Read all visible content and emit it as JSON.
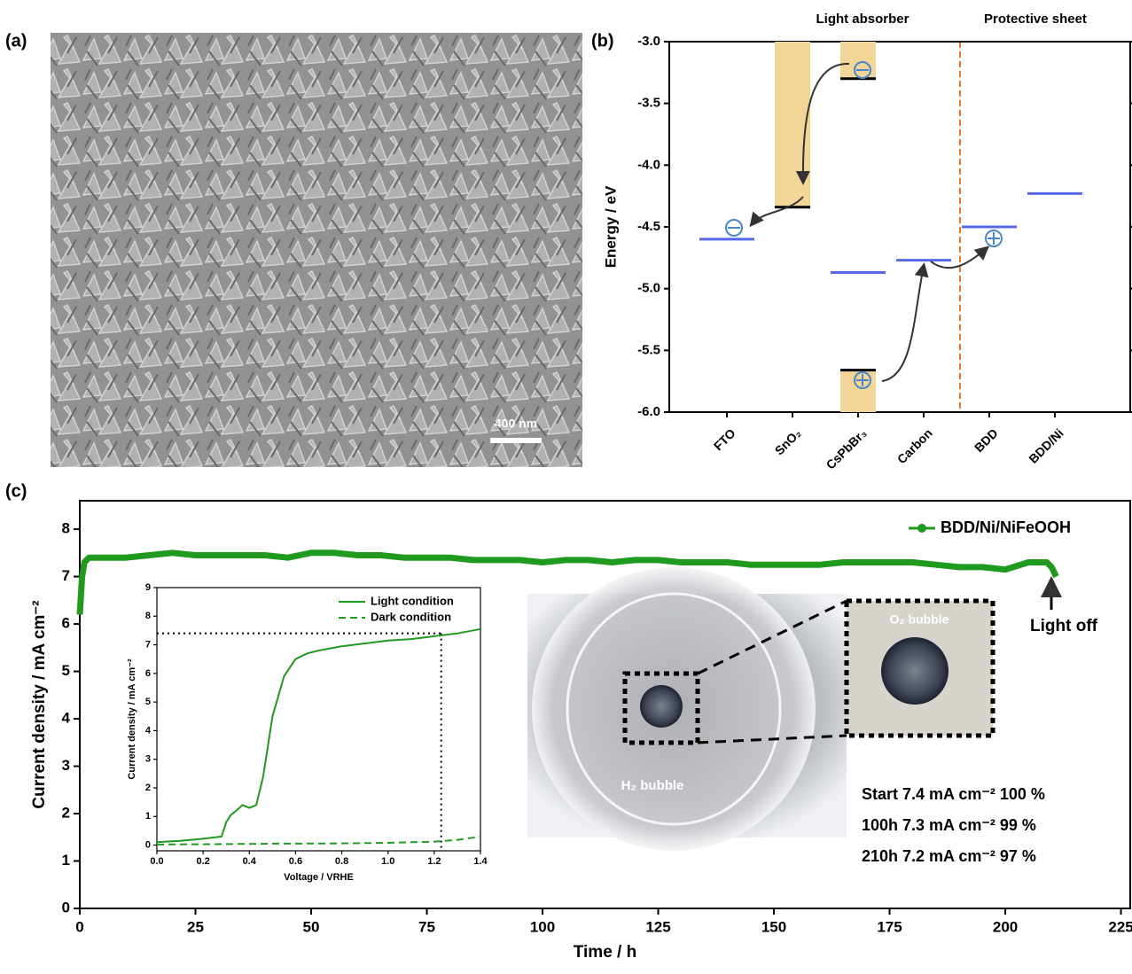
{
  "panel_labels": [
    "(a)",
    "(b)",
    "(c)"
  ],
  "sem_image": {
    "scale_bar": "400 nm"
  },
  "photo": {
    "labels": [
      "H₂ bubble",
      "O₂ bubble"
    ]
  },
  "chart_data": [
    {
      "type": "energy-level",
      "ylabel": "Energy / eV",
      "groups": [
        "Light absorber",
        "Protective sheet"
      ],
      "categories": [
        "FTO",
        "SnO₂",
        "CsPbBr₃",
        "Carbon",
        "BDD",
        "BDD/Ni"
      ],
      "levels": [
        -4.6,
        null,
        -4.87,
        -4.77,
        -4.5,
        -4.23
      ],
      "conduction_band": [
        null,
        -4.34,
        -3.3,
        null,
        null,
        null
      ],
      "valence_band": [
        null,
        null,
        -5.66,
        null,
        null,
        null
      ],
      "level_color": "#5468e6",
      "band_color": "#f2d597",
      "edge_color": "#000000",
      "ylim": [
        -6.0,
        -3.0
      ],
      "yticks": [
        {
          "value": -3.0,
          "label": "-3.0"
        },
        -3.5,
        {
          "value": -4.0,
          "label": "-4.0"
        },
        -4.5,
        {
          "value": -5.0,
          "label": "-5.0"
        },
        -5.5,
        {
          "value": -6.0,
          "label": "-6.0"
        }
      ]
    },
    {
      "type": "line",
      "xlabel": "Time / h",
      "ylabel": "Current density / mA cm⁻²",
      "x": [
        0,
        0.5,
        1,
        2,
        5,
        10,
        15,
        20,
        25,
        30,
        35,
        40,
        45,
        50,
        55,
        60,
        65,
        70,
        75,
        80,
        85,
        90,
        95,
        100,
        105,
        110,
        115,
        120,
        125,
        130,
        135,
        140,
        145,
        150,
        155,
        160,
        165,
        170,
        175,
        180,
        185,
        190,
        195,
        200,
        205,
        209,
        210,
        211
      ],
      "series": [
        {
          "name": "BDD/Ni/NiFeOOH",
          "color": "#1f9a1f",
          "values": [
            6.2,
            7.0,
            7.3,
            7.4,
            7.4,
            7.4,
            7.45,
            7.5,
            7.45,
            7.45,
            7.45,
            7.45,
            7.4,
            7.5,
            7.5,
            7.45,
            7.45,
            7.4,
            7.4,
            7.4,
            7.35,
            7.35,
            7.35,
            7.3,
            7.35,
            7.35,
            7.3,
            7.35,
            7.35,
            7.3,
            7.3,
            7.3,
            7.25,
            7.25,
            7.25,
            7.25,
            7.3,
            7.3,
            7.3,
            7.3,
            7.25,
            7.2,
            7.2,
            7.15,
            7.3,
            7.3,
            7.2,
            7.0
          ]
        }
      ],
      "xlim": [
        0,
        227
      ],
      "xticks": [
        0,
        25,
        50,
        75,
        100,
        125,
        150,
        175,
        200,
        225
      ],
      "ylim": [
        0,
        8.6
      ],
      "yticks": [
        0,
        1,
        2,
        3,
        4,
        5,
        6,
        7,
        8
      ],
      "annotation": "Light off",
      "stats": [
        "Start 7.4 mA cm⁻² 100 %",
        "100h 7.3 mA cm⁻² 99 %",
        "210h 7.2 mA cm⁻² 97 %"
      ]
    },
    {
      "type": "line",
      "xlabel": "Voltage / VRHE",
      "ylabel": "Current density / mA cm⁻²",
      "x": [
        0,
        0.1,
        0.2,
        0.28,
        0.3,
        0.32,
        0.35,
        0.37,
        0.4,
        0.43,
        0.46,
        0.5,
        0.55,
        0.6,
        0.65,
        0.7,
        0.8,
        0.9,
        1.0,
        1.1,
        1.2,
        1.3,
        1.4
      ],
      "series": [
        {
          "name": "Light condition",
          "color": "#1f9a1f",
          "style": "solid",
          "values": [
            0.1,
            0.15,
            0.22,
            0.3,
            0.8,
            1.05,
            1.25,
            1.4,
            1.3,
            1.4,
            2.4,
            4.5,
            5.9,
            6.5,
            6.7,
            6.8,
            6.95,
            7.05,
            7.15,
            7.2,
            7.3,
            7.4,
            7.55
          ]
        },
        {
          "name": "Dark condition",
          "color": "#1f9a1f",
          "style": "dashed",
          "values": [
            0.02,
            0.025,
            0.03,
            0.035,
            0.035,
            0.035,
            0.04,
            0.04,
            0.04,
            0.045,
            0.045,
            0.05,
            0.05,
            0.05,
            0.055,
            0.055,
            0.06,
            0.07,
            0.08,
            0.1,
            0.12,
            0.18,
            0.3
          ]
        }
      ],
      "guides": {
        "x": 1.23,
        "y": 7.4
      },
      "xlim": [
        0,
        1.4
      ],
      "xticks": [
        {
          "value": 0,
          "label": "0.0"
        },
        0.2,
        0.4,
        0.6,
        0.8,
        {
          "value": 1,
          "label": "1.0"
        },
        1.2,
        1.4
      ],
      "ylim": [
        -0.2,
        9
      ],
      "yticks": [
        0,
        1,
        2,
        3,
        4,
        5,
        6,
        7,
        8,
        9
      ]
    }
  ]
}
